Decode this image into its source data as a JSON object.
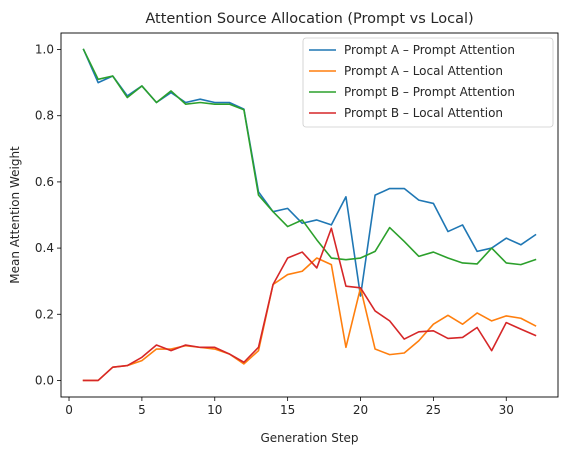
{
  "chart_data": {
    "type": "line",
    "title": "Attention Source Allocation (Prompt vs Local)",
    "xlabel": "Generation Step",
    "ylabel": "Mean Attention Weight",
    "xlim": [
      -0.55,
      33.55
    ],
    "ylim": [
      -0.05,
      1.05
    ],
    "xticks": [
      0,
      5,
      10,
      15,
      20,
      25,
      30
    ],
    "yticks": [
      0.0,
      0.2,
      0.4,
      0.6,
      0.8,
      1.0
    ],
    "xtick_labels": [
      "0",
      "5",
      "10",
      "15",
      "20",
      "25",
      "30"
    ],
    "ytick_labels": [
      "0.0",
      "0.2",
      "0.4",
      "0.6",
      "0.8",
      "1.0"
    ],
    "grid": false,
    "legend_position": "upper right",
    "x": [
      1,
      2,
      3,
      4,
      5,
      6,
      7,
      8,
      9,
      10,
      11,
      12,
      13,
      14,
      15,
      16,
      17,
      18,
      19,
      20,
      21,
      22,
      23,
      24,
      25,
      26,
      27,
      28,
      29,
      30,
      31,
      32
    ],
    "series": [
      {
        "name": "Prompt A – Prompt Attention",
        "color": "#1f77b4",
        "values": [
          1.0,
          0.9,
          0.92,
          0.86,
          0.89,
          0.84,
          0.87,
          0.84,
          0.85,
          0.84,
          0.84,
          0.82,
          0.57,
          0.51,
          0.52,
          0.475,
          0.485,
          0.47,
          0.555,
          0.255,
          0.56,
          0.58,
          0.58,
          0.545,
          0.535,
          0.45,
          0.47,
          0.39,
          0.4,
          0.43,
          0.41,
          0.44
        ]
      },
      {
        "name": "Prompt A – Local Attention",
        "color": "#ff7f0e",
        "values": [
          0.0,
          0.0,
          0.04,
          0.045,
          0.06,
          0.095,
          0.095,
          0.105,
          0.1,
          0.095,
          0.08,
          0.05,
          0.09,
          0.29,
          0.32,
          0.33,
          0.37,
          0.35,
          0.1,
          0.28,
          0.095,
          0.078,
          0.083,
          0.12,
          0.17,
          0.197,
          0.17,
          0.204,
          0.18,
          0.195,
          0.188,
          0.165
        ]
      },
      {
        "name": "Prompt B – Prompt Attention",
        "color": "#2ca02c",
        "values": [
          1.0,
          0.91,
          0.92,
          0.855,
          0.89,
          0.84,
          0.875,
          0.835,
          0.84,
          0.835,
          0.835,
          0.818,
          0.56,
          0.51,
          0.465,
          0.485,
          0.425,
          0.37,
          0.365,
          0.37,
          0.39,
          0.462,
          0.42,
          0.375,
          0.388,
          0.37,
          0.355,
          0.352,
          0.4,
          0.355,
          0.35,
          0.365
        ]
      },
      {
        "name": "Prompt B – Local Attention",
        "color": "#d62728",
        "values": [
          0.0,
          0.0,
          0.04,
          0.045,
          0.07,
          0.107,
          0.09,
          0.107,
          0.1,
          0.1,
          0.08,
          0.055,
          0.1,
          0.29,
          0.37,
          0.388,
          0.34,
          0.46,
          0.285,
          0.28,
          0.21,
          0.18,
          0.125,
          0.147,
          0.15,
          0.127,
          0.13,
          0.16,
          0.09,
          0.175,
          0.155,
          0.136
        ]
      }
    ]
  }
}
